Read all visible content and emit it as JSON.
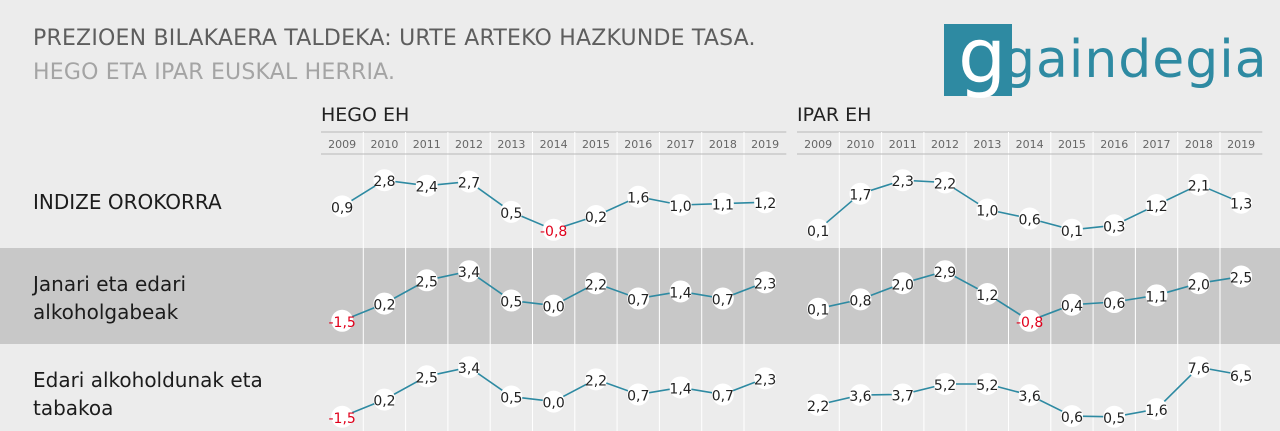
{
  "title": "PREZIOEN BILAKAERA TALDEKA: URTE ARTEKO HAZKUNDE TASA.",
  "subtitle": "HEGO ETA IPAR EUSKAL HERRIA.",
  "logo": {
    "text": "gaindegia"
  },
  "colors": {
    "line": "#2e8aa2",
    "negative": "#e0001b",
    "label": "#222222"
  },
  "chart_data": {
    "type": "line",
    "title": "PREZIOEN BILAKAERA TALDEKA: URTE ARTEKO HAZKUNDE TASA.",
    "subtitle": "HEGO ETA IPAR EUSKAL HERRIA.",
    "years": [
      "2009",
      "2010",
      "2011",
      "2012",
      "2013",
      "2014",
      "2015",
      "2016",
      "2017",
      "2018",
      "2019"
    ],
    "regions": [
      {
        "name": "HEGO EH",
        "rows": [
          {
            "label": "INDIZE OROKORRA",
            "values": [
              0.9,
              2.8,
              2.4,
              2.7,
              0.5,
              -0.8,
              0.2,
              1.6,
              1.0,
              1.1,
              1.2
            ],
            "display": [
              "0,9",
              "2,8",
              "2,4",
              "2,7",
              "0,5",
              "-0,8",
              "0,2",
              "1,6",
              "1,0",
              "1,1",
              "1,2"
            ]
          },
          {
            "label": "Janari eta edari alkoholgabeak",
            "values": [
              -1.5,
              0.2,
              2.5,
              3.4,
              0.5,
              0.0,
              2.2,
              0.7,
              1.4,
              0.7,
              2.3
            ],
            "display": [
              "-1,5",
              "0,2",
              "2,5",
              "3,4",
              "0,5",
              "0,0",
              "2,2",
              "0,7",
              "1,4",
              "0,7",
              "2,3"
            ]
          },
          {
            "label": "Edari alkoholdunak eta tabakoa",
            "values": [
              -1.5,
              0.2,
              2.5,
              3.4,
              0.5,
              0.0,
              2.2,
              0.7,
              1.4,
              0.7,
              2.3
            ],
            "display": [
              "-1,5",
              "0,2",
              "2,5",
              "3,4",
              "0,5",
              "0,0",
              "2,2",
              "0,7",
              "1,4",
              "0,7",
              "2,3"
            ]
          }
        ]
      },
      {
        "name": "IPAR EH",
        "rows": [
          {
            "label": "INDIZE OROKORRA",
            "values": [
              0.1,
              1.7,
              2.3,
              2.2,
              1.0,
              0.6,
              0.1,
              0.3,
              1.2,
              2.1,
              1.3
            ],
            "display": [
              "0,1",
              "1,7",
              "2,3",
              "2,2",
              "1,0",
              "0,6",
              "0,1",
              "0,3",
              "1,2",
              "2,1",
              "1,3"
            ]
          },
          {
            "label": "Janari eta edari alkoholgabeak",
            "values": [
              0.1,
              0.8,
              2.0,
              2.9,
              1.2,
              -0.8,
              0.4,
              0.6,
              1.1,
              2.0,
              2.5
            ],
            "display": [
              "0,1",
              "0,8",
              "2,0",
              "2,9",
              "1,2",
              "-0,8",
              "0,4",
              "0,6",
              "1,1",
              "2,0",
              "2,5"
            ]
          },
          {
            "label": "Edari alkoholdunak eta tabakoa",
            "values": [
              2.2,
              3.6,
              3.7,
              5.2,
              5.2,
              3.6,
              0.6,
              0.5,
              1.6,
              7.6,
              6.5
            ],
            "display": [
              "2,2",
              "3,6",
              "3,7",
              "5,2",
              "5,2",
              "3,6",
              "0,6",
              "0,5",
              "1,6",
              "7,6",
              "6,5"
            ]
          }
        ]
      }
    ],
    "row_labels": [
      "INDIZE OROKORRA",
      "Janari eta edari alkoholgabeak",
      "Edari alkoholdunak eta tabakoa"
    ]
  }
}
